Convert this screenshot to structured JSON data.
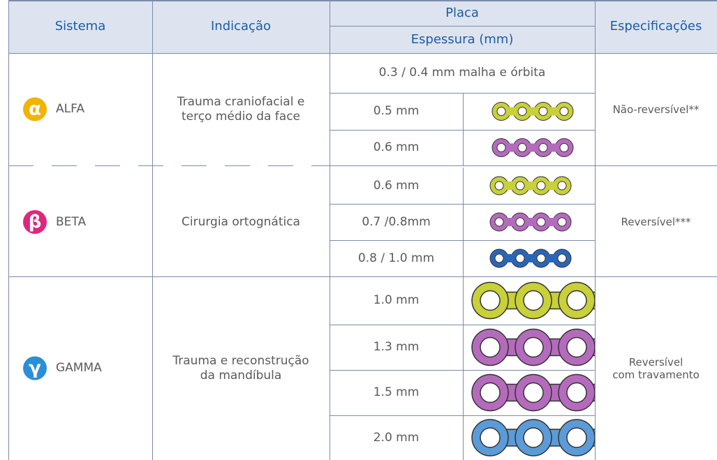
{
  "header": {
    "sistema": "Sistema",
    "indicacao": "Indicação",
    "placa": "Placa",
    "espessura": "Espessura (mm)",
    "especificacoes": "Especificações"
  },
  "groups": [
    {
      "symbol": "α",
      "icon_color": "#f2b400",
      "name": "ALFA",
      "indication": [
        "Trauma craniofacial e",
        "terço médio da face"
      ],
      "spec": [
        "Não-reversível**"
      ],
      "rows": [
        {
          "thickness": "0.3 / 0.4 mm malha e órbita",
          "full": true
        },
        {
          "thickness": "0.5 mm",
          "plate": "#c8d03a"
        },
        {
          "thickness": "0.6 mm",
          "plate": "#b56bbc"
        }
      ]
    },
    {
      "symbol": "β",
      "icon_color": "#e0267d",
      "name": "BETA",
      "indication": [
        "Cirurgia ortognática"
      ],
      "spec": [
        "Reversível***"
      ],
      "rows": [
        {
          "thickness": "0.6 mm",
          "plate": "#c8d03a"
        },
        {
          "thickness": "0.7 /0.8mm",
          "plate": "#b56bbc"
        },
        {
          "thickness": "0.8 / 1.0 mm",
          "plate": "#2a66b8"
        }
      ]
    },
    {
      "symbol": "γ",
      "icon_color": "#2a8fd6",
      "name": "GAMMA",
      "indication": [
        "Trauma e reconstrução",
        "da mandíbula"
      ],
      "spec": [
        "Reversível",
        "com travamento"
      ],
      "rows": [
        {
          "thickness": "1.0 mm",
          "plate": "#c8d03a"
        },
        {
          "thickness": "1.3 mm",
          "plate": "#b56bbc"
        },
        {
          "thickness": "1.5 mm",
          "plate": "#b56bbc"
        },
        {
          "thickness": "2.0 mm",
          "plate": "#5b9bd8"
        }
      ]
    }
  ]
}
